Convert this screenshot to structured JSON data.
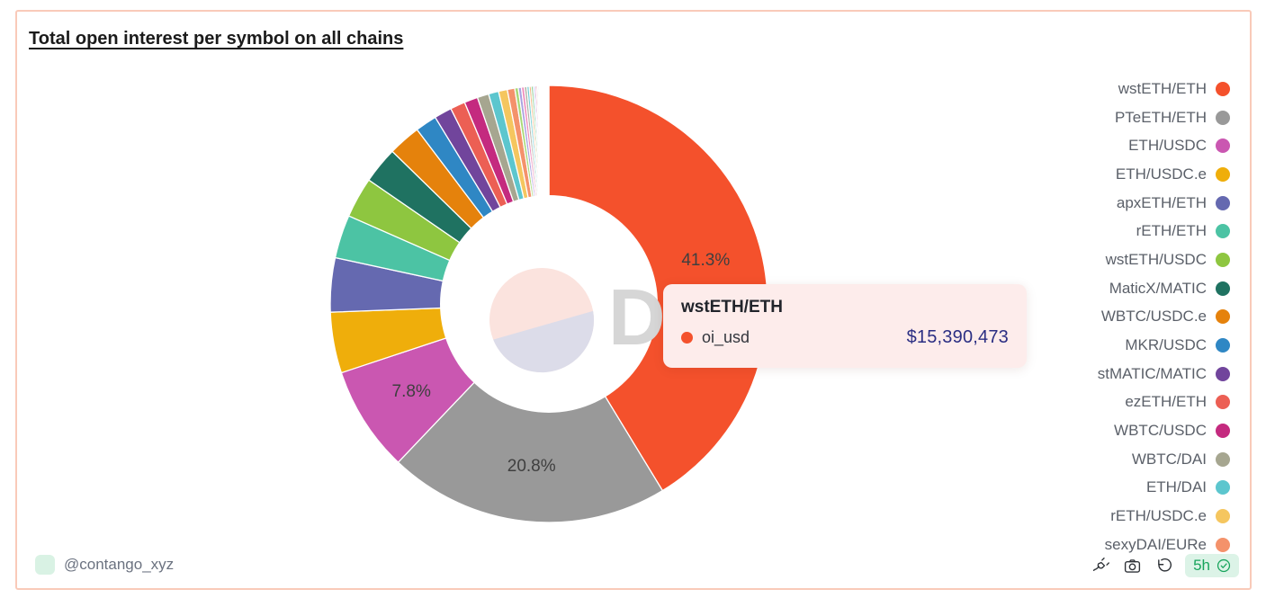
{
  "card": {
    "title": "Total open interest per symbol on all chains",
    "border_color": "#f9cab9"
  },
  "chart_data": {
    "type": "pie",
    "title": "Total open interest per symbol on all chains",
    "donut": true,
    "series_name": "oi_usd",
    "value_unit": "USD",
    "percent_labels_shown": [
      "41.3%",
      "20.8%",
      "7.8%"
    ],
    "slices": [
      {
        "label": "wstETH/ETH",
        "pct": 41.3,
        "color": "#f4512c",
        "value_usd": 15390473
      },
      {
        "label": "PTeETH/ETH",
        "pct": 20.8,
        "color": "#999999"
      },
      {
        "label": "ETH/USDC",
        "pct": 7.8,
        "color": "#ca57b1"
      },
      {
        "label": "ETH/USDC.e",
        "pct": 4.5,
        "color": "#efae0b"
      },
      {
        "label": "apxETH/ETH",
        "pct": 4.0,
        "color": "#6569b0"
      },
      {
        "label": "rETH/ETH",
        "pct": 3.2,
        "color": "#4cc3a4"
      },
      {
        "label": "wstETH/USDC",
        "pct": 3.0,
        "color": "#8ec640"
      },
      {
        "label": "MaticX/MATIC",
        "pct": 2.7,
        "color": "#1f7261"
      },
      {
        "label": "WBTC/USDC.e",
        "pct": 2.4,
        "color": "#e5820c"
      },
      {
        "label": "MKR/USDC",
        "pct": 1.6,
        "color": "#2f87c4"
      },
      {
        "label": "stMATIC/MATIC",
        "pct": 1.3,
        "color": "#71459c"
      },
      {
        "label": "ezETH/ETH",
        "pct": 1.1,
        "color": "#ec5f54"
      },
      {
        "label": "WBTC/USDC",
        "pct": 1.0,
        "color": "#c42a7f"
      },
      {
        "label": "WBTC/DAI",
        "pct": 0.85,
        "color": "#a6a690"
      },
      {
        "label": "ETH/DAI",
        "pct": 0.75,
        "color": "#5cc6ce"
      },
      {
        "label": "rETH/USDC.e",
        "pct": 0.65,
        "color": "#f5c65f"
      },
      {
        "label": "sexyDAI/EURe",
        "pct": 0.55,
        "color": "#f4926b"
      }
    ],
    "other_slices": {
      "count": 32,
      "ratio": 0.9,
      "palette": [
        "#a8d977",
        "#a9a2e0",
        "#f08bbb",
        "#b3b3a6",
        "#72ccd4",
        "#f2b27d",
        "#6cc06c",
        "#9db8ef",
        "#d9559e",
        "#cbbb95",
        "#8fd9b6",
        "#b58fd9",
        "#ead96e",
        "#7fa8dc",
        "#ef9089",
        "#5fbfae"
      ]
    },
    "legend_position": "right",
    "label_color": "#3f3f3f",
    "center_badge": {
      "top_color": "#fbe3de",
      "bottom_color": "#dcdce9"
    }
  },
  "tooltip": {
    "title": "wstETH/ETH",
    "series": "oi_usd",
    "value": "$15,390,473",
    "dot_color": "#f4512c"
  },
  "watermark": "D",
  "footer": {
    "handle": "@contango_xyz",
    "avatar_color": "#d9f2e4",
    "icons": [
      "plug-icon",
      "camera-icon",
      "refresh-icon"
    ],
    "age_badge": {
      "text": "5h",
      "bg": "#dcf3e7",
      "color": "#18a45c"
    }
  }
}
